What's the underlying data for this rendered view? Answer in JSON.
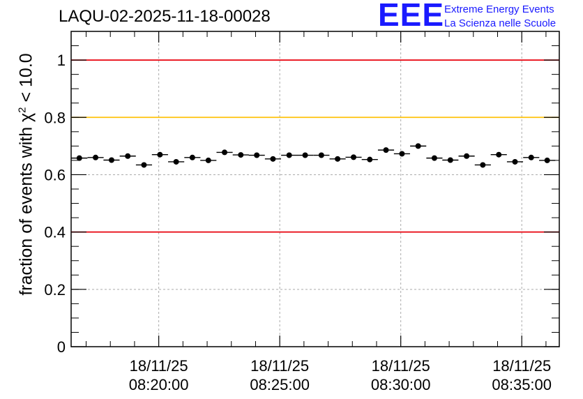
{
  "header": {
    "run_title": "LAQU-02-2025-11-18-00028"
  },
  "logo": {
    "mark": "EEE",
    "line1": "Extreme Energy Events",
    "line2": "La Scienza nelle Scuole"
  },
  "chart_data": {
    "type": "scatter",
    "title": "LAQU-02-2025-11-18-00028",
    "xlabel": "",
    "ylabel": "fraction of events with χ² < 10.0",
    "ylabel_parts": {
      "prefix": "fraction of events with ",
      "chi": "χ",
      "sup": "2",
      "suffix": " < 10.0"
    },
    "ylim": [
      0,
      1.1
    ],
    "yticks": [
      0,
      0.2,
      0.4,
      0.6,
      0.8,
      1
    ],
    "ytick_labels": [
      "0",
      "0.2",
      "0.4",
      "0.6",
      "0.8",
      "1"
    ],
    "xlim_minutes": [
      16.38,
      36.55
    ],
    "xticks_minutes": [
      20,
      25,
      30,
      35
    ],
    "xtick_labels": [
      {
        "date": "18/11/25",
        "time": "08:20:00"
      },
      {
        "date": "18/11/25",
        "time": "08:25:00"
      },
      {
        "date": "18/11/25",
        "time": "08:30:00"
      },
      {
        "date": "18/11/25",
        "time": "08:35:00"
      }
    ],
    "grid": true,
    "reference_lines": [
      {
        "value": 1.0,
        "color": "#e8000b"
      },
      {
        "value": 0.8,
        "color": "#ffc20a"
      },
      {
        "value": 0.4,
        "color": "#e8000b"
      }
    ],
    "bin_width_minutes": 0.6667,
    "series": [
      {
        "name": "fraction",
        "x_minutes": [
          16.72,
          17.39,
          18.05,
          18.72,
          19.39,
          20.05,
          20.72,
          21.39,
          22.05,
          22.72,
          23.39,
          24.05,
          24.72,
          25.39,
          26.05,
          26.72,
          27.39,
          28.05,
          28.72,
          29.39,
          30.05,
          30.72,
          31.39,
          32.05,
          32.72,
          33.39,
          34.05,
          34.72,
          35.39,
          36.05
        ],
        "values": [
          0.658,
          0.66,
          0.651,
          0.665,
          0.634,
          0.67,
          0.645,
          0.66,
          0.65,
          0.678,
          0.669,
          0.668,
          0.655,
          0.668,
          0.668,
          0.668,
          0.655,
          0.661,
          0.653,
          0.686,
          0.673,
          0.7,
          0.658,
          0.651,
          0.665,
          0.634,
          0.67,
          0.645,
          0.66,
          0.65
        ]
      }
    ]
  }
}
